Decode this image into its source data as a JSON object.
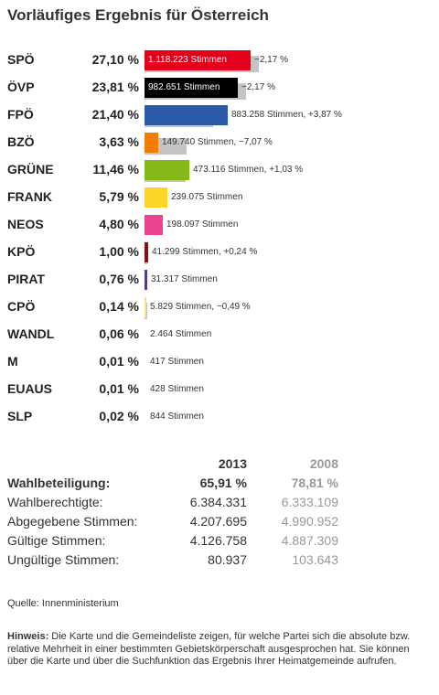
{
  "title": "Vorläufiges Ergebnis für Österreich",
  "chart_data": {
    "type": "bar",
    "title": "Vorläufiges Ergebnis für Österreich",
    "categories": [
      "SPÖ",
      "ÖVP",
      "FPÖ",
      "BZÖ",
      "GRÜNE",
      "FRANK",
      "NEOS",
      "KPÖ",
      "PIRAT",
      "CPÖ",
      "WANDL",
      "M",
      "EUAUS",
      "SLP"
    ],
    "percent_labels": [
      "27,10 %",
      "23,81 %",
      "21,40 %",
      "3,63 %",
      "11,46 %",
      "5,79 %",
      "4,80 %",
      "1,00 %",
      "0,76 %",
      "0,14 %",
      "0,06 %",
      "0,01 %",
      "0,01 %",
      "0,02 %"
    ],
    "values": [
      27.1,
      23.81,
      21.4,
      3.63,
      11.46,
      5.79,
      4.8,
      1.0,
      0.76,
      0.14,
      0.06,
      0.01,
      0.01,
      0.02
    ],
    "previous_values": [
      29.27,
      25.98,
      17.53,
      10.7,
      10.43,
      null,
      null,
      0.76,
      null,
      0.63,
      null,
      null,
      null,
      null
    ],
    "votes": [
      "1.118.223 Stimmen",
      "982.651 Stimmen",
      "883.258 Stimmen",
      "149.740 Stimmen",
      "473.116 Stimmen",
      "239.075 Stimmen",
      "198.097 Stimmen",
      "41.299 Stimmen",
      "31.317 Stimmen",
      "5.829 Stimmen",
      "2.464 Stimmen",
      "417 Stimmen",
      "428 Stimmen",
      "844 Stimmen"
    ],
    "changes": [
      "−2,17 %",
      "−2,17 %",
      "+3,87 %",
      "−7,07 %",
      "+1,03 %",
      "",
      "",
      "+0,24 %",
      "",
      "−0,49 %",
      "",
      "",
      "",
      ""
    ],
    "colors": [
      "#e2001a",
      "#000000",
      "#2a5aa8",
      "#f07d00",
      "#84b818",
      "#fdd52a",
      "#e8448f",
      "#8a0f0f",
      "#5a3a8a",
      "#f5e08a",
      "#cccccc",
      "#cccccc",
      "#cccccc",
      "#cccccc"
    ],
    "xlim": [
      0,
      30
    ]
  },
  "comparison": {
    "year1": "2013",
    "year2": "2008",
    "rows": [
      {
        "label": "Wahlbeteiligung:",
        "v1": "65,91 %",
        "v2": "78,81 %"
      },
      {
        "label": "Wahlberechtigte:",
        "v1": "6.384.331",
        "v2": "6.333.109"
      },
      {
        "label": "Abgegebene Stimmen:",
        "v1": "4.207.695",
        "v2": "4.990.952"
      },
      {
        "label": "Gültige Stimmen:",
        "v1": "4.126.758",
        "v2": "4.887.309"
      },
      {
        "label": "Ungültige Stimmen:",
        "v1": "80.937",
        "v2": "103.643"
      }
    ]
  },
  "source": "Quelle: Innenministerium",
  "note": {
    "label": "Hinweis:",
    "text": " Die Karte und die Gemeindeliste zeigen, für welche Partei sich die absolute bzw. relative Mehrheit in einer bestimmten Gebietskörperschaft ausgesprochen hat. Sie können über die Karte und über die Suchfunktion das Ergebnis Ihrer Heimatgemeinde aufrufen."
  }
}
